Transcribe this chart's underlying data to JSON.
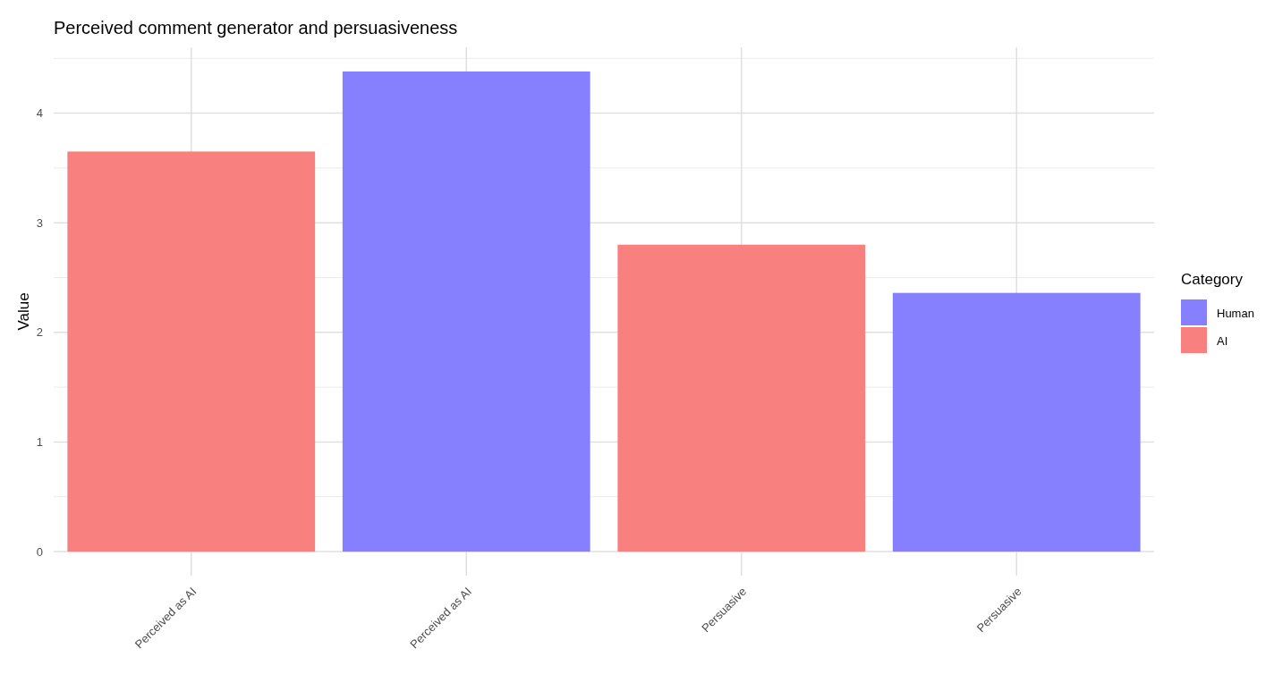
{
  "chart_data": {
    "type": "bar",
    "title": "Perceived comment generator and persuasiveness",
    "ylabel": "Value",
    "legend_title": "Category",
    "categories": [
      "Perceived as AI",
      "Perceived as AI",
      "Persuasive",
      "Persuasive"
    ],
    "series": [
      {
        "name": "Human",
        "color": "#8780fe",
        "values": [
          null,
          4.38,
          null,
          2.36
        ]
      },
      {
        "name": "AI",
        "color": "#f8807f",
        "values": [
          3.65,
          null,
          2.8,
          null
        ]
      }
    ],
    "ylim": [
      -0.22,
      4.6
    ],
    "yticks": [
      0,
      1,
      2,
      3,
      4
    ],
    "grid": true,
    "legend": "right"
  }
}
